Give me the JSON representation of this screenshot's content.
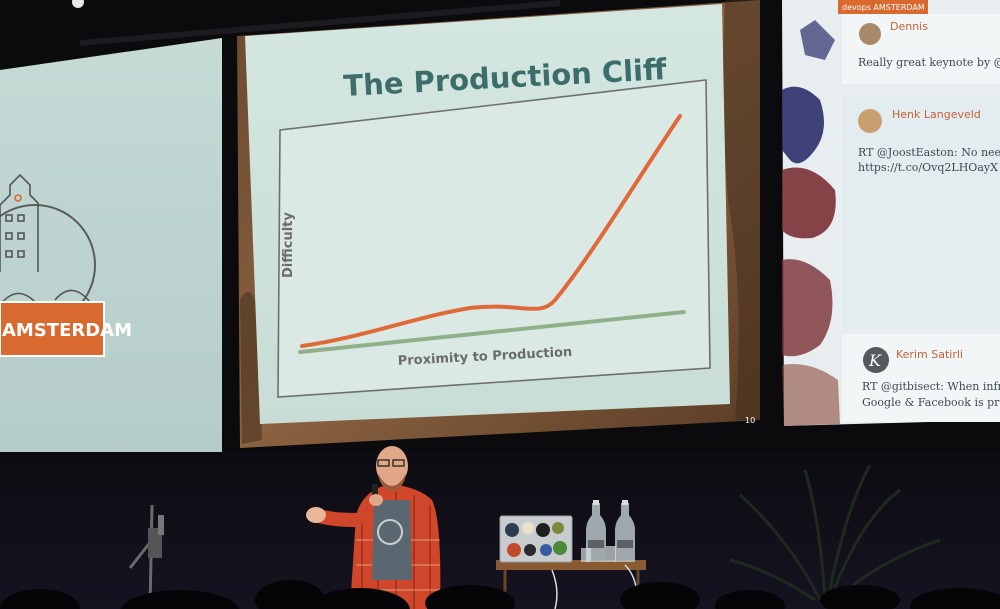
{
  "left_screen": {
    "badge_text": "AMSTERDAM"
  },
  "center_slide": {
    "title": "The Production Cliff",
    "y_axis_label": "Difficulty",
    "x_axis_label": "Proximity to Production",
    "slide_number": "10"
  },
  "right_screen": {
    "banner_text": "devops AMSTERDAM",
    "tweets": [
      {
        "author": "Dennis",
        "text": "Really great keynote by @a"
      },
      {
        "author": "Henk Langeveld",
        "text_line1": "RT @JoostEaston: No need",
        "text_line2": "https://t.co/Ovq2LHOayX"
      },
      {
        "author": "Kerim Satirli",
        "text_line1": "RT @gitbisect: When infr",
        "text_line2": "Google & Facebook is pro"
      }
    ]
  },
  "colors": {
    "cliff_curve": "#e0693a",
    "baseline": "#8fb08a",
    "title": "#3c6d6a",
    "badge": "#d8692f"
  }
}
